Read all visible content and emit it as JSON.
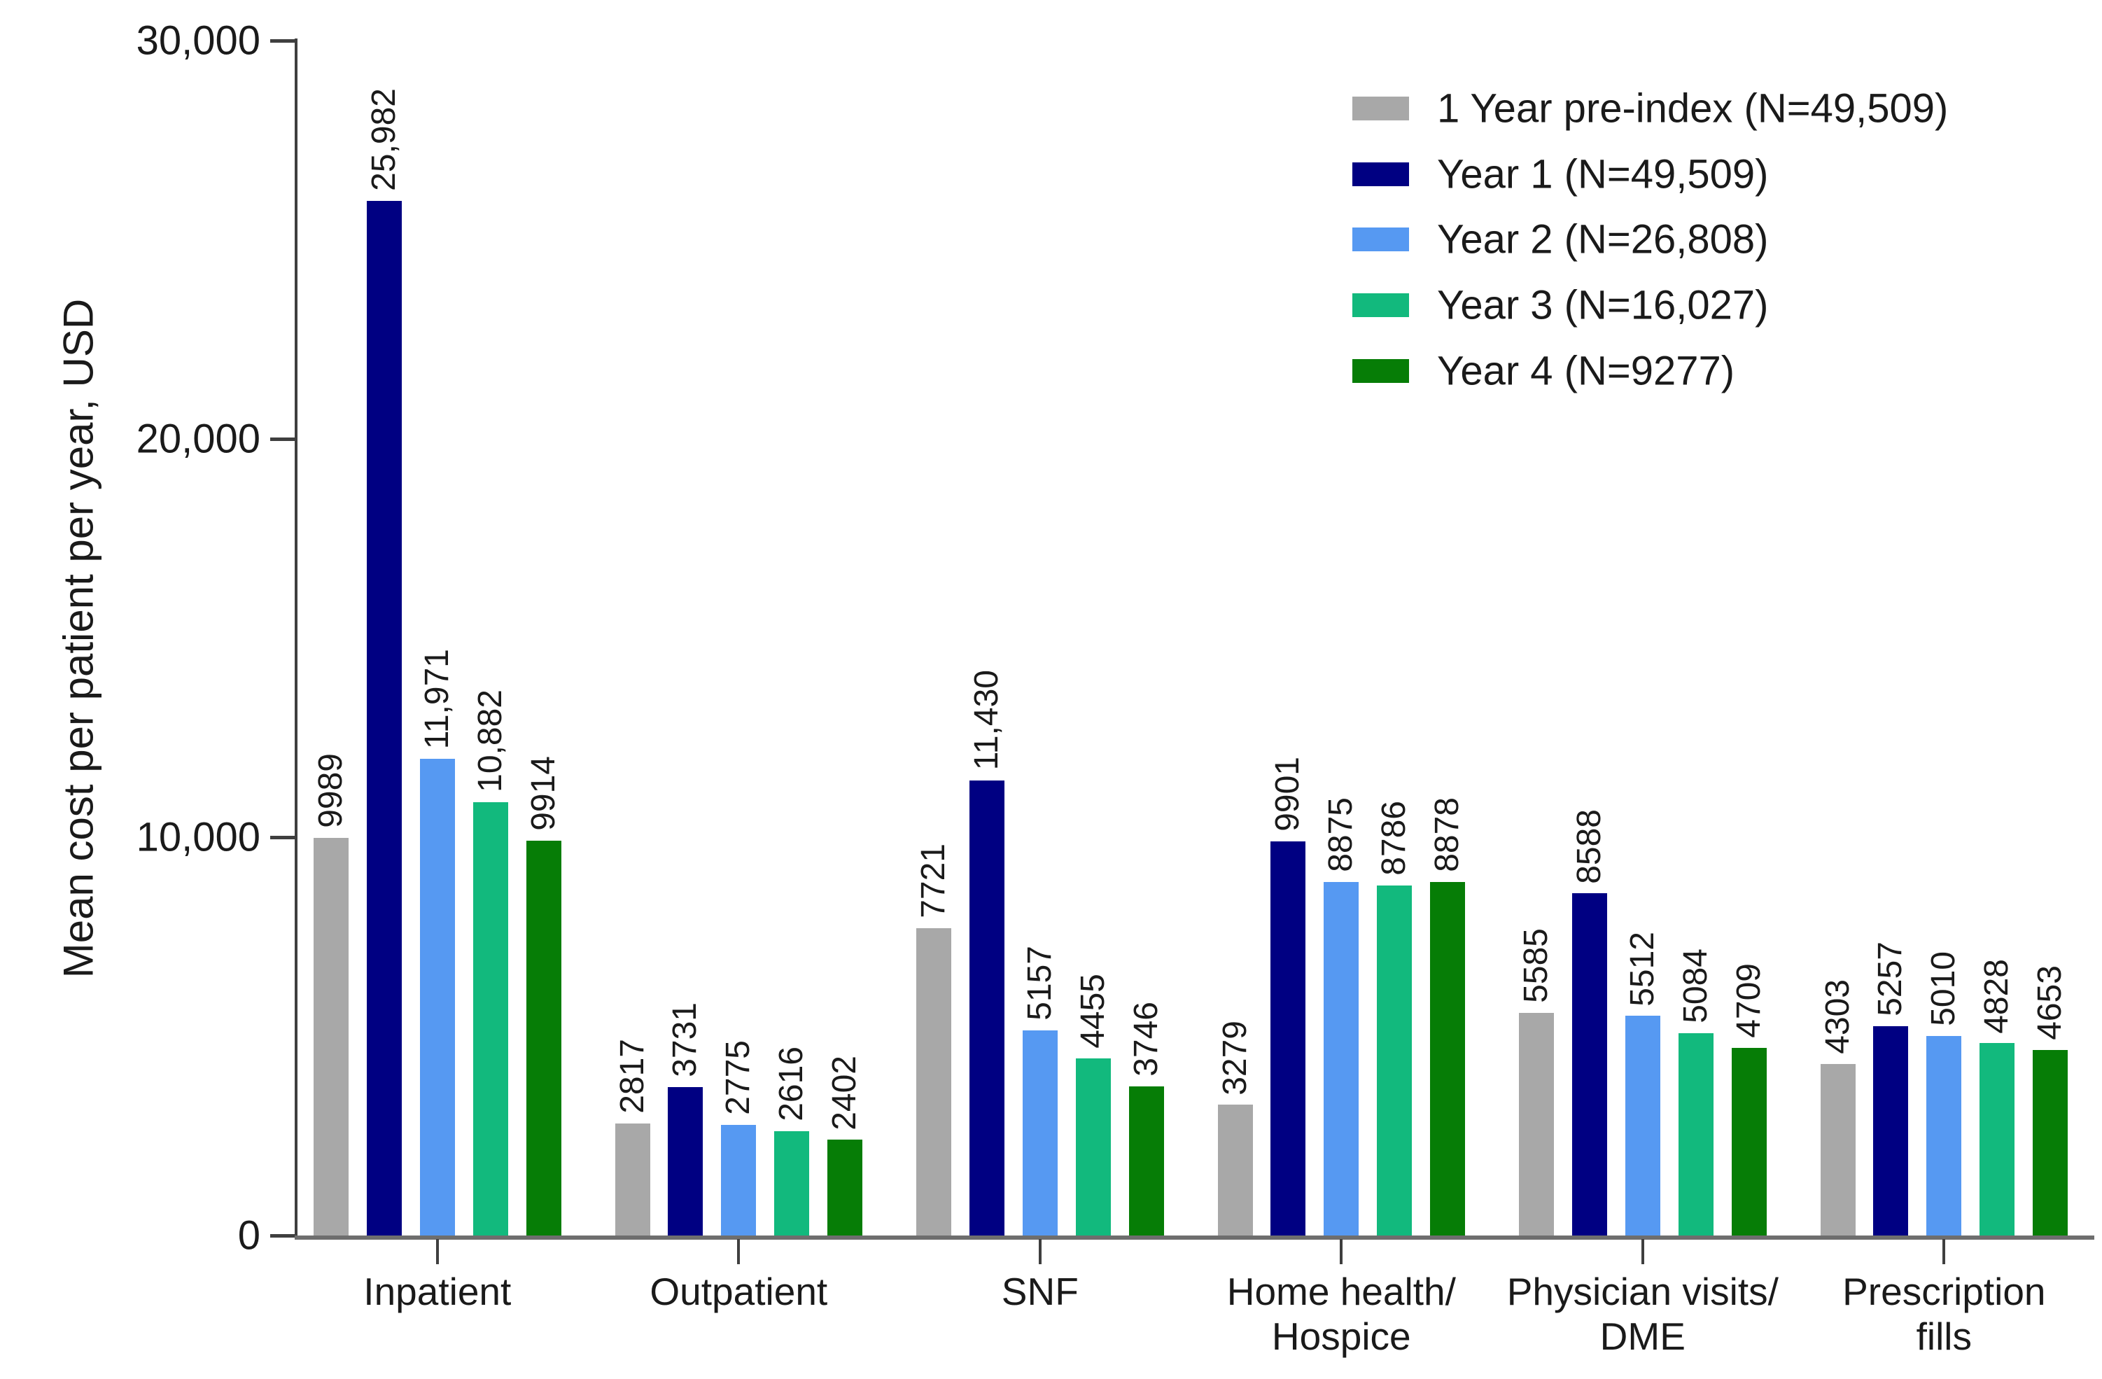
{
  "chart_data": {
    "type": "bar",
    "title": "",
    "xlabel": "",
    "ylabel": "Mean cost per patient per year, USD",
    "ylim": [
      0,
      30000
    ],
    "grid": false,
    "legend_position": "top-right",
    "yticks": [
      {
        "value": 0,
        "label": "0"
      },
      {
        "value": 10000,
        "label": "10,000"
      },
      {
        "value": 20000,
        "label": "20,000"
      },
      {
        "value": 30000,
        "label": "30,000"
      }
    ],
    "categories": [
      {
        "lines": [
          "Inpatient"
        ]
      },
      {
        "lines": [
          "Outpatient"
        ]
      },
      {
        "lines": [
          "SNF"
        ]
      },
      {
        "lines": [
          "Home health/",
          "Hospice"
        ]
      },
      {
        "lines": [
          "Physician visits/",
          "DME"
        ]
      },
      {
        "lines": [
          "Prescription",
          "fills"
        ]
      }
    ],
    "series": [
      {
        "name": "1 Year pre-index (N=49,509)",
        "color": "#a8a8a8",
        "values": [
          9989,
          2817,
          7721,
          3279,
          5585,
          4303
        ],
        "labels": [
          "9989",
          "2817",
          "7721",
          "3279",
          "5585",
          "4303"
        ]
      },
      {
        "name": "Year 1 (N=49,509)",
        "color": "#000082",
        "values": [
          25982,
          3731,
          11430,
          9901,
          8588,
          5257
        ],
        "labels": [
          "25,982",
          "3731",
          "11,430",
          "9901",
          "8588",
          "5257"
        ]
      },
      {
        "name": "Year 2 (N=26,808)",
        "color": "#5699f2",
        "values": [
          11971,
          2775,
          5157,
          8875,
          5512,
          5010
        ],
        "labels": [
          "11,971",
          "2775",
          "5157",
          "8875",
          "5512",
          "5010"
        ]
      },
      {
        "name": "Year 3 (N=16,027)",
        "color": "#12b97d",
        "values": [
          10882,
          2616,
          4455,
          8786,
          5084,
          4828
        ],
        "labels": [
          "10,882",
          "2616",
          "4455",
          "8786",
          "5084",
          "4828"
        ]
      },
      {
        "name": "Year 4 (N=9277)",
        "color": "#067d06",
        "values": [
          9914,
          2402,
          3746,
          8878,
          4709,
          4653
        ],
        "labels": [
          "9914",
          "2402",
          "3746",
          "8878",
          "4709",
          "4653"
        ]
      }
    ],
    "colors": {
      "axis_baseline": "#6e6e6e",
      "axis_line": "#3f3f3f",
      "text": "#1a1a1a",
      "background": "#ffffff"
    }
  }
}
